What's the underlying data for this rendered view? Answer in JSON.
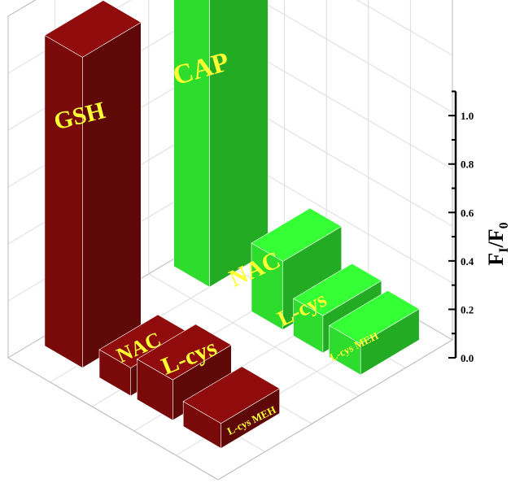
{
  "chart_data": {
    "type": "bar",
    "title": "",
    "ylabel_main": "F",
    "ylabel_sub1": "I",
    "ylabel_slash": "/F",
    "ylabel_sub2": "0",
    "ylim": [
      0,
      1.1
    ],
    "yticks": [
      "0.0",
      "0.2",
      "0.4",
      "0.6",
      "0.8",
      "1.0"
    ],
    "grid": true,
    "series": [
      {
        "color": "#7a0a0a",
        "categories": [
          "GSH",
          "NAC",
          "L-cys",
          "L-cys MEH"
        ],
        "values": [
          1.0,
          0.09,
          0.13,
          0.08
        ]
      },
      {
        "color": "#2ddc2d",
        "categories": [
          "CAP",
          "NAC",
          "L-cys",
          "L-cys MEH"
        ],
        "values": [
          1.12,
          0.22,
          0.12,
          0.1
        ]
      }
    ],
    "label_color": "#ffff33",
    "ticks_color": "#000000"
  }
}
